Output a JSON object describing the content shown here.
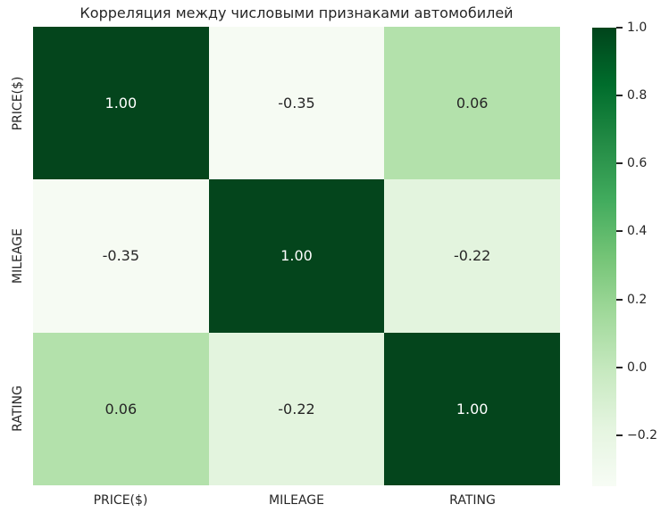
{
  "figure": {
    "background": "#ffffff",
    "text_color": "#262626"
  },
  "chart_data": {
    "type": "heatmap",
    "title": "Корреляция между числовыми признаками автомобилей",
    "x_categories": [
      "PRICE($)",
      "MILEAGE",
      "RATING"
    ],
    "y_categories": [
      "PRICE($)",
      "MILEAGE",
      "RATING"
    ],
    "matrix": [
      [
        1.0,
        -0.35,
        0.06
      ],
      [
        -0.35,
        1.0,
        -0.22
      ],
      [
        0.06,
        -0.22,
        1.0
      ]
    ],
    "cell_labels": [
      [
        "1.00",
        "-0.35",
        "0.06"
      ],
      [
        "-0.35",
        "1.00",
        "-0.22"
      ],
      [
        "0.06",
        "-0.22",
        "1.00"
      ]
    ],
    "cell_colors": [
      [
        "#04451c",
        "#f6fbf3",
        "#b3e1ab"
      ],
      [
        "#f6fbf3",
        "#04451c",
        "#e3f4de"
      ],
      [
        "#b3e1ab",
        "#e3f4de",
        "#04451c"
      ]
    ],
    "cell_text_colors": [
      [
        "#ffffff",
        "#262626",
        "#262626"
      ],
      [
        "#262626",
        "#ffffff",
        "#262626"
      ],
      [
        "#262626",
        "#262626",
        "#ffffff"
      ]
    ],
    "vmin": -0.35,
    "vmax": 1.0,
    "colormap": "Greens",
    "grid": false,
    "legend_position": "colorbar-right",
    "colorbar": {
      "tick_labels": [
        "1.0",
        "0.8",
        "0.6",
        "0.4",
        "0.2",
        "0.0",
        "−0.2"
      ],
      "tick_positions_pct": [
        0,
        14.81,
        29.63,
        44.44,
        59.26,
        74.07,
        88.89
      ],
      "gradient_stops": [
        {
          "pct": 0,
          "color": "#00441b"
        },
        {
          "pct": 12.5,
          "color": "#006d2c"
        },
        {
          "pct": 25,
          "color": "#238b45"
        },
        {
          "pct": 37.5,
          "color": "#41ab5d"
        },
        {
          "pct": 50,
          "color": "#74c476"
        },
        {
          "pct": 62.5,
          "color": "#a1d99b"
        },
        {
          "pct": 75,
          "color": "#c7e9c0"
        },
        {
          "pct": 87.5,
          "color": "#e5f5e0"
        },
        {
          "pct": 100,
          "color": "#f7fcf5"
        }
      ]
    }
  }
}
